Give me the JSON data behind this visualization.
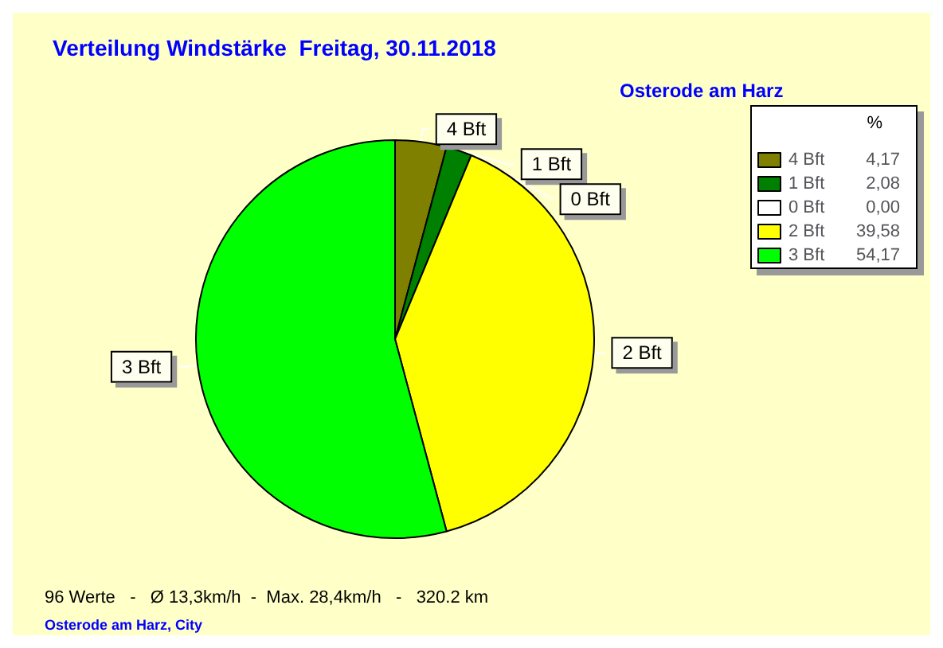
{
  "chart_data": {
    "type": "pie",
    "title": "Verteilung Windstärke  Freitag, 30.11.2018",
    "subtitle": "Osterode am Harz",
    "legend_title": "%",
    "categories": [
      "4 Bft",
      "1 Bft",
      "0 Bft",
      "2 Bft",
      "3 Bft"
    ],
    "values": [
      4.17,
      2.08,
      0,
      39.58,
      54.17
    ],
    "value_labels": [
      "4,17",
      "2,08",
      "0,00",
      "39,58",
      "54,17"
    ],
    "colors": [
      "#808000",
      "#008000",
      "#ffffff",
      "#ffff00",
      "#00ff00"
    ],
    "legend": "top right",
    "annotations": [
      "96 Werte   -   Ø 13,3km/h  -  Max. 28,4km/h   -   320.2 km",
      "Osterode am Harz, City"
    ]
  }
}
